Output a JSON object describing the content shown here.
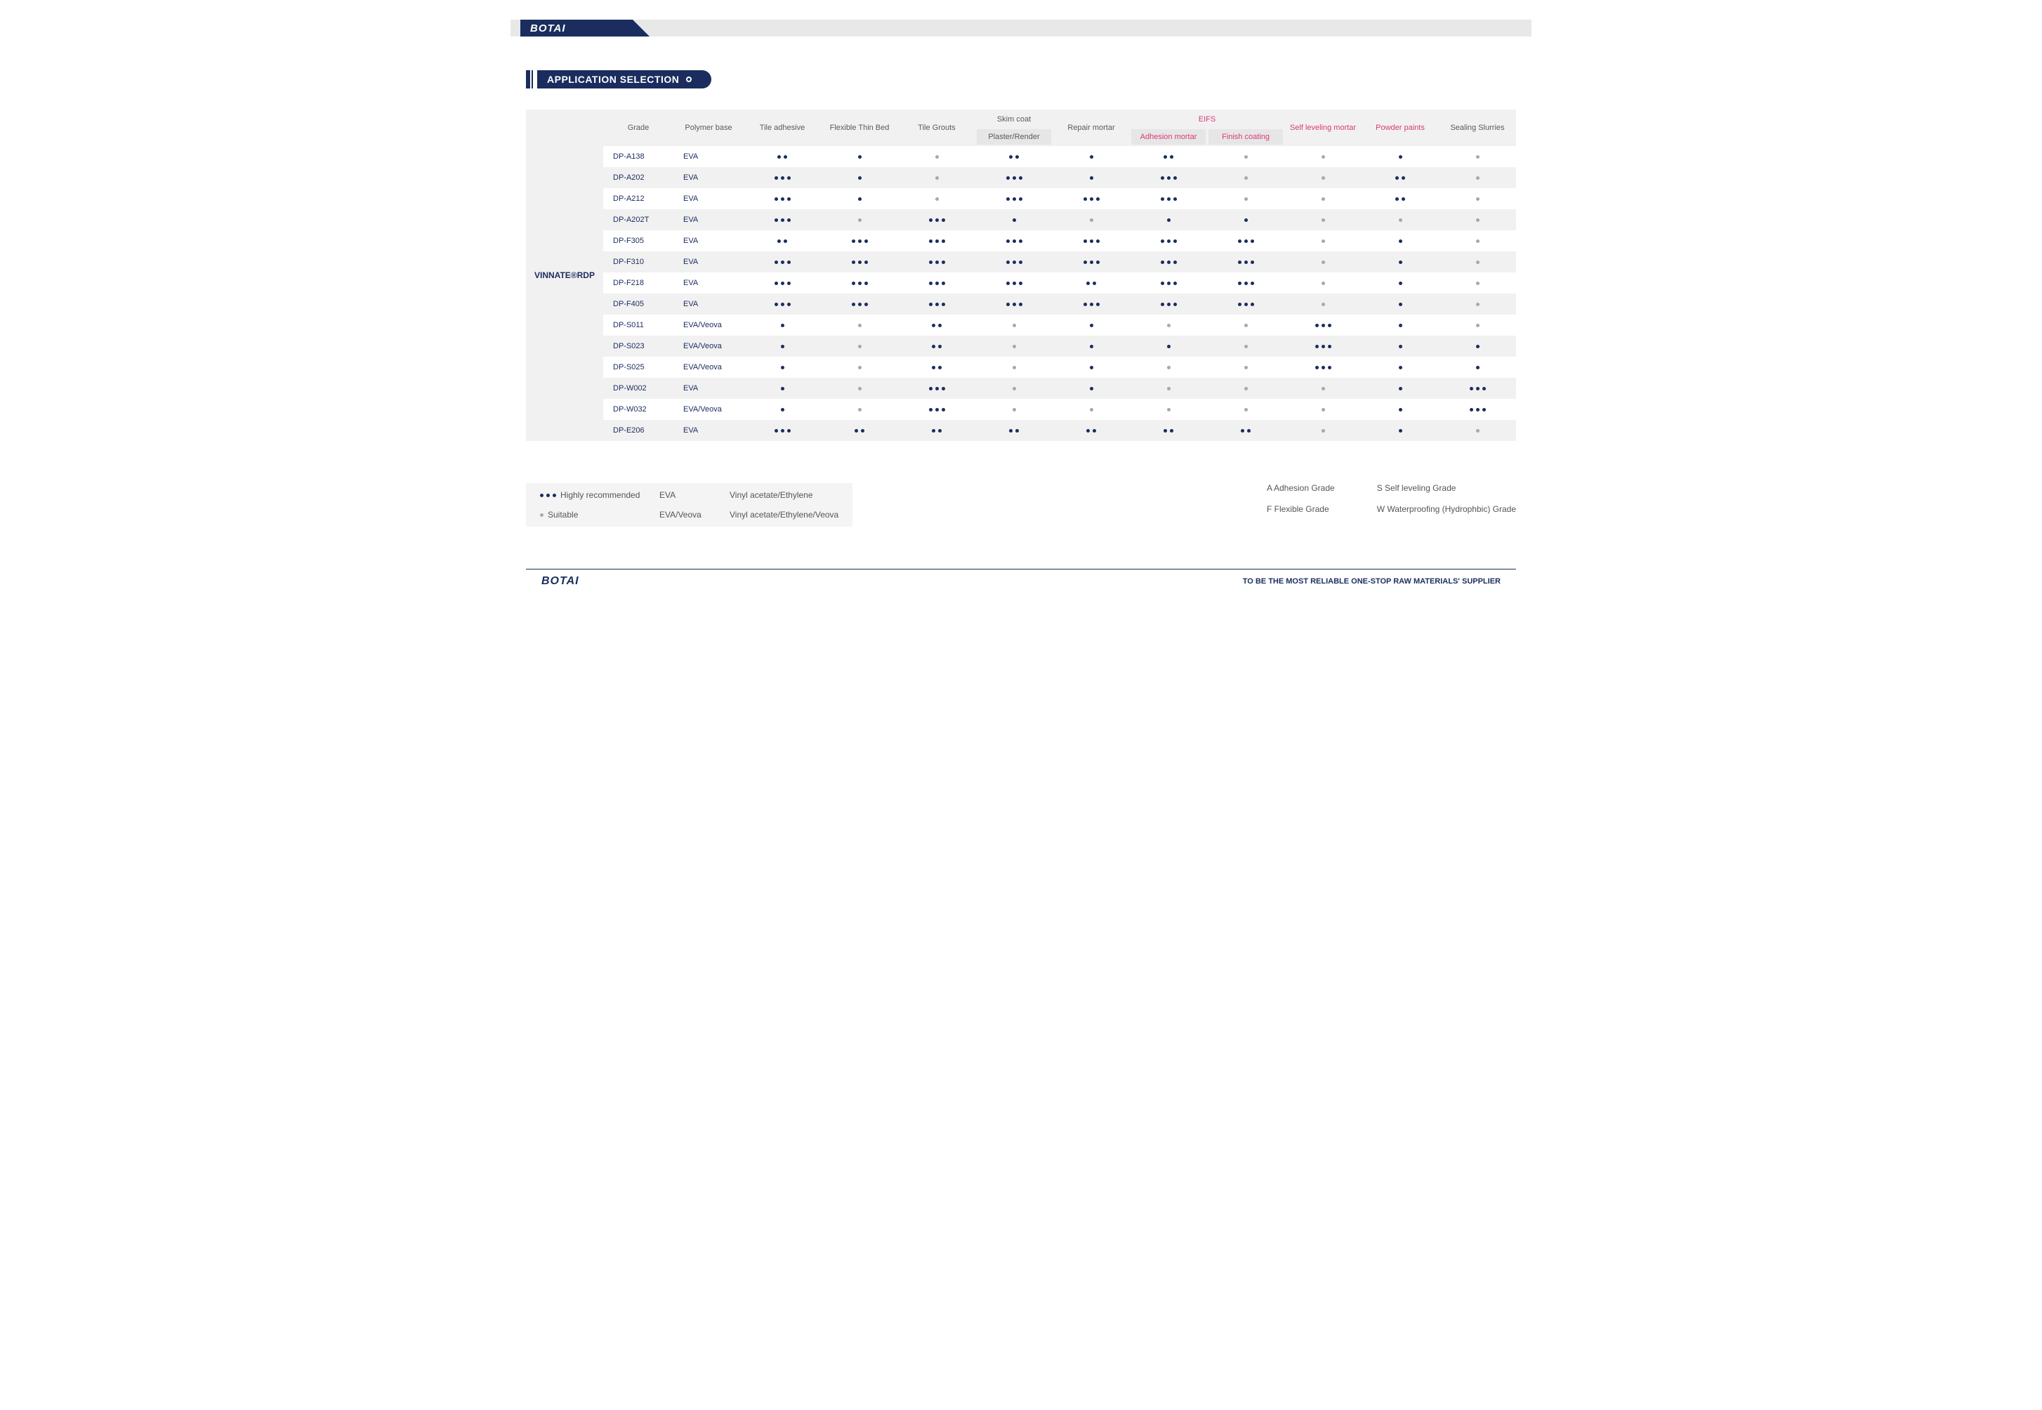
{
  "brand": {
    "logo_text": "BOTAI"
  },
  "section_title": "APPLICATION SELECTION",
  "side_label": "VINNATE®RDP",
  "colors": {
    "primary": "#1a2d5e",
    "pink": "#d83a7a",
    "gray_dot": "#a8a8a8",
    "row_alt": "#f1f1f1",
    "sub_header": "#e6e6e6"
  },
  "headers": {
    "grade": "Grade",
    "polymer_base": "Polymer base",
    "tile_adhesive": "Tile adhesive",
    "flexible_thin_bed": "Flexible Thin Bed",
    "tile_grouts": "Tile Grouts",
    "skim_coat": "Skim coat",
    "plaster_render": "Plaster/Render",
    "repair_mortar": "Repair mortar",
    "eifs": "EIFS",
    "adhesion_mortar": "Adhesion mortar",
    "finish_coating": "Finish coating",
    "self_leveling": "Self leveling mortar",
    "powder_paints": "Powder paints",
    "sealing_slurries": "Sealing Slurries"
  },
  "rows": [
    {
      "grade": "DP-A138",
      "base": "EVA",
      "cells": [
        "b2",
        "b1",
        "g1",
        "b2",
        "b1",
        "b2",
        "g1",
        "g1",
        "b1",
        "g1"
      ]
    },
    {
      "grade": "DP-A202",
      "base": "EVA",
      "cells": [
        "b3",
        "b1",
        "g1",
        "b3",
        "b1",
        "b3",
        "g1",
        "g1",
        "b2",
        "g1"
      ]
    },
    {
      "grade": "DP-A212",
      "base": "EVA",
      "cells": [
        "b3",
        "b1",
        "g1",
        "b3",
        "b3",
        "b3",
        "g1",
        "g1",
        "b2",
        "g1"
      ]
    },
    {
      "grade": "DP-A202T",
      "base": "EVA",
      "cells": [
        "b3",
        "g1",
        "b3",
        "b1",
        "g1",
        "b1",
        "b1",
        "g1",
        "g1",
        "g1"
      ]
    },
    {
      "grade": "DP-F305",
      "base": "EVA",
      "cells": [
        "b2",
        "b3",
        "b3",
        "b3",
        "b3",
        "b3",
        "b3",
        "g1",
        "b1",
        "g1"
      ]
    },
    {
      "grade": "DP-F310",
      "base": "EVA",
      "cells": [
        "b3",
        "b3",
        "b3",
        "b3",
        "b3",
        "b3",
        "b3",
        "g1",
        "b1",
        "g1"
      ]
    },
    {
      "grade": "DP-F218",
      "base": "EVA",
      "cells": [
        "b3",
        "b3",
        "b3",
        "b3",
        "b2",
        "b3",
        "b3",
        "g1",
        "b1",
        "g1"
      ]
    },
    {
      "grade": "DP-F405",
      "base": "EVA",
      "cells": [
        "b3",
        "b3",
        "b3",
        "b3",
        "b3",
        "b3",
        "b3",
        "g1",
        "b1",
        "g1"
      ]
    },
    {
      "grade": "DP-S011",
      "base": "EVA/Veova",
      "cells": [
        "b1",
        "g1",
        "b2",
        "g1",
        "b1",
        "g1",
        "g1",
        "b3",
        "b1",
        "g1"
      ]
    },
    {
      "grade": "DP-S023",
      "base": "EVA/Veova",
      "cells": [
        "b1",
        "g1",
        "b2",
        "g1",
        "b1",
        "b1",
        "g1",
        "b3",
        "b1",
        "b1"
      ]
    },
    {
      "grade": "DP-S025",
      "base": "EVA/Veova",
      "cells": [
        "b1",
        "g1",
        "b2",
        "g1",
        "b1",
        "g1",
        "g1",
        "b3",
        "b1",
        "b1"
      ]
    },
    {
      "grade": "DP-W002",
      "base": "EVA",
      "cells": [
        "b1",
        "g1",
        "b3",
        "g1",
        "b1",
        "g1",
        "g1",
        "g1",
        "b1",
        "b3"
      ]
    },
    {
      "grade": "DP-W032",
      "base": "EVA/Veova",
      "cells": [
        "b1",
        "g1",
        "b3",
        "g1",
        "g1",
        "g1",
        "g1",
        "g1",
        "b1",
        "b3"
      ]
    },
    {
      "grade": "DP-E206",
      "base": "EVA",
      "cells": [
        "b3",
        "b2",
        "b2",
        "b2",
        "b2",
        "b2",
        "b2",
        "g1",
        "b1",
        "g1"
      ]
    }
  ],
  "legend": {
    "highly": "Highly recommended",
    "suitable": "Suitable",
    "eva_code": "EVA",
    "eva_desc": "Vinyl acetate/Ethylene",
    "evaveova_code": "EVA/Veova",
    "evaveova_desc": "Vinyl acetate/Ethylene/Veova",
    "a": "A  Adhesion Grade",
    "s": "S  Self leveling Grade",
    "f": "F  Flexible Grade",
    "w": "W  Waterproofing (Hydrophbic) Grade"
  },
  "footer_tagline": "TO BE THE MOST RELIABLE ONE-STOP RAW MATERIALS' SUPPLIER"
}
